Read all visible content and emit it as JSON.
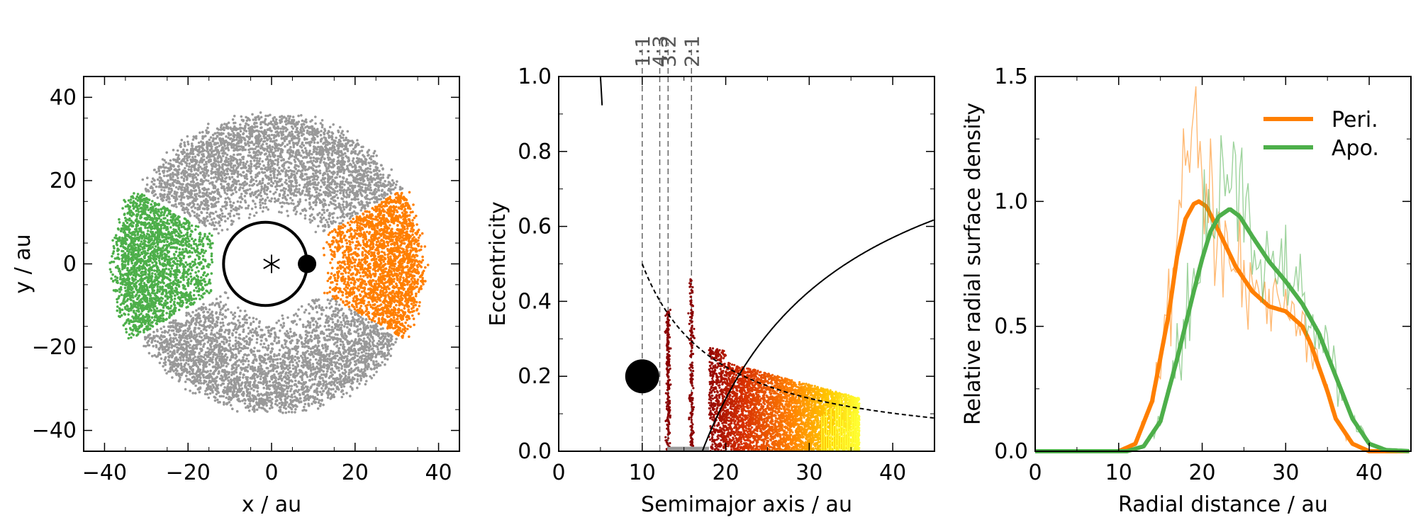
{
  "chart_data": [
    {
      "type": "scatter",
      "title": "",
      "xlabel": "x / au",
      "ylabel": "y / au",
      "xlim": [
        -45,
        45
      ],
      "ylim": [
        -45,
        45
      ],
      "xticks": [
        -40,
        -20,
        0,
        20,
        40
      ],
      "yticks": [
        -40,
        -20,
        0,
        20,
        40
      ],
      "xtick_labels": [
        "−40",
        "−20",
        "0",
        "20",
        "40"
      ],
      "ytick_labels": [
        "−40",
        "−20",
        "0",
        "20",
        "40"
      ],
      "colors": {
        "gray": "#999999",
        "green": "#4daf4a",
        "orange": "#ff7f00"
      },
      "disk": {
        "inner_radius": 12,
        "outer_radius": 37
      },
      "planet_orbit": {
        "radius": 10,
        "center": [
          -1.5,
          0
        ]
      },
      "planet": {
        "x": 8.5,
        "y": 0
      },
      "star": {
        "x": 0,
        "y": 0,
        "symbol": "*"
      },
      "series": [
        {
          "color": "#999999",
          "angle_deg": [
            30,
            150
          ]
        },
        {
          "color": "#999999",
          "angle_deg": [
            210,
            330
          ]
        },
        {
          "color": "#4daf4a",
          "angle_deg": [
            150,
            210
          ]
        },
        {
          "color": "#ff7f00",
          "angle_deg": [
            -30,
            30
          ]
        }
      ]
    },
    {
      "type": "scatter",
      "title": "",
      "xlabel": "Semimajor axis / au",
      "ylabel": "Eccentricity",
      "xlim": [
        0,
        45
      ],
      "ylim": [
        0,
        1
      ],
      "xticks": [
        0,
        10,
        20,
        30,
        40
      ],
      "yticks": [
        0.0,
        0.2,
        0.4,
        0.6,
        0.8,
        1.0
      ],
      "xtick_labels": [
        "0",
        "10",
        "20",
        "30",
        "40"
      ],
      "ytick_labels": [
        "0.0",
        "0.2",
        "0.4",
        "0.6",
        "0.8",
        "1.0"
      ],
      "resonances": [
        {
          "label": "1:1",
          "a": 10.0
        },
        {
          "label": "4:3",
          "a": 12.1
        },
        {
          "label": "3:2",
          "a": 13.1
        },
        {
          "label": "2:1",
          "a": 15.9
        }
      ],
      "planet": {
        "a": 10,
        "e": 0.2
      },
      "colormap": [
        "#8b0000",
        "#d73000",
        "#ff7f00",
        "#ffd700",
        "#ffff33"
      ],
      "curves": [
        "apocentre crossing",
        "pericentre crossing",
        "stability limit"
      ]
    },
    {
      "type": "line",
      "title": "",
      "xlabel": "Radial distance / au",
      "ylabel": "Relative radial surface density",
      "xlim": [
        0,
        45
      ],
      "ylim": [
        0,
        1.5
      ],
      "xticks": [
        0,
        10,
        20,
        30,
        40
      ],
      "yticks": [
        0.0,
        0.5,
        1.0,
        1.5
      ],
      "xtick_labels": [
        "0",
        "10",
        "20",
        "30",
        "40"
      ],
      "ytick_labels": [
        "0.0",
        "0.5",
        "1.0",
        "1.5"
      ],
      "legend_position": "top-right",
      "series": [
        {
          "name": "Peri.",
          "color": "#ff7f00",
          "x": [
            0,
            10,
            12,
            14,
            16,
            17,
            18,
            19,
            19.6,
            20.5,
            22,
            24,
            26,
            28,
            30,
            32,
            33,
            35,
            36,
            38,
            40,
            45
          ],
          "y": [
            0,
            0,
            0.03,
            0.2,
            0.55,
            0.78,
            0.93,
            0.99,
            1.0,
            0.98,
            0.88,
            0.74,
            0.64,
            0.58,
            0.56,
            0.5,
            0.43,
            0.24,
            0.13,
            0.03,
            0,
            0
          ]
        },
        {
          "name": "Apo.",
          "color": "#4daf4a",
          "x": [
            0,
            11,
            13,
            15,
            17,
            19,
            20,
            21,
            22,
            23.3,
            24.5,
            26,
            28,
            30,
            32,
            34,
            36,
            38,
            40,
            42,
            45
          ],
          "y": [
            0,
            0,
            0.02,
            0.12,
            0.37,
            0.64,
            0.77,
            0.88,
            0.94,
            0.97,
            0.94,
            0.86,
            0.76,
            0.68,
            0.59,
            0.47,
            0.3,
            0.13,
            0.03,
            0.005,
            0
          ]
        }
      ]
    }
  ]
}
